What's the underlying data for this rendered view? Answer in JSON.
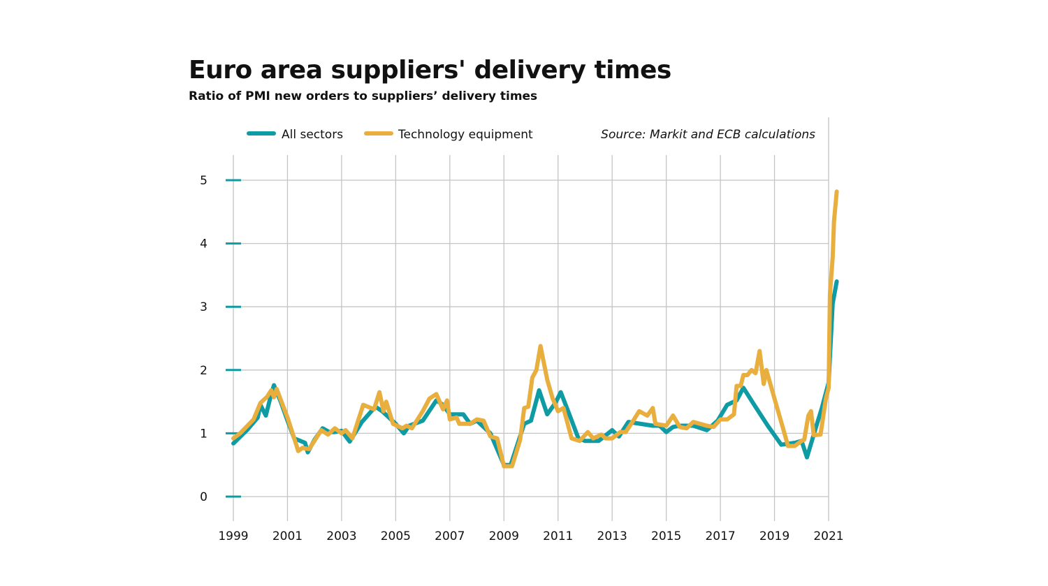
{
  "chart_title": "Euro area suppliers' delivery times",
  "chart_subtitle": "Ratio of PMI new orders to suppliers’ delivery times",
  "source": "Source: Markit and ECB calculations",
  "colors": {
    "all_sectors": "#0f9ba4",
    "technology_equipment": "#e8ae3e",
    "grid": "#c4c4c4",
    "y_tick_mark": "#0f9ba4"
  },
  "chart_data": {
    "type": "line",
    "title": "Euro area suppliers' delivery times",
    "subtitle": "Ratio of PMI new orders to suppliers’ delivery times",
    "xlabel": "",
    "ylabel": "",
    "x_unit": "year",
    "xlim": [
      1999,
      2021.4
    ],
    "ylim": [
      0,
      5
    ],
    "x_ticks": [
      1999,
      2001,
      2003,
      2005,
      2007,
      2009,
      2011,
      2013,
      2015,
      2017,
      2019,
      2021
    ],
    "y_ticks": [
      0,
      1,
      2,
      3,
      4,
      5
    ],
    "grid": true,
    "legend_position": "top",
    "series": [
      {
        "name": "All sectors",
        "color": "#0f9ba4",
        "points": [
          [
            1999.0,
            0.84
          ],
          [
            1999.5,
            1.05
          ],
          [
            1999.9,
            1.25
          ],
          [
            2000.0,
            1.45
          ],
          [
            2000.2,
            1.28
          ],
          [
            2000.4,
            1.62
          ],
          [
            2000.5,
            1.76
          ],
          [
            2000.75,
            1.5
          ],
          [
            2001.0,
            1.2
          ],
          [
            2001.25,
            0.92
          ],
          [
            2001.65,
            0.85
          ],
          [
            2001.75,
            0.7
          ],
          [
            2002.0,
            0.9
          ],
          [
            2002.3,
            1.08
          ],
          [
            2002.55,
            1.02
          ],
          [
            2002.75,
            1.02
          ],
          [
            2003.0,
            1.04
          ],
          [
            2003.3,
            0.87
          ],
          [
            2003.75,
            1.18
          ],
          [
            2004.25,
            1.42
          ],
          [
            2004.5,
            1.35
          ],
          [
            2004.75,
            1.25
          ],
          [
            2005.0,
            1.15
          ],
          [
            2005.3,
            1.0
          ],
          [
            2005.5,
            1.12
          ],
          [
            2006.0,
            1.2
          ],
          [
            2006.5,
            1.52
          ],
          [
            2006.75,
            1.45
          ],
          [
            2007.0,
            1.3
          ],
          [
            2007.25,
            1.3
          ],
          [
            2007.5,
            1.3
          ],
          [
            2007.75,
            1.15
          ],
          [
            2008.0,
            1.2
          ],
          [
            2008.5,
            1.0
          ],
          [
            2009.0,
            0.5
          ],
          [
            2009.25,
            0.5
          ],
          [
            2009.75,
            1.15
          ],
          [
            2010.0,
            1.2
          ],
          [
            2010.3,
            1.68
          ],
          [
            2010.6,
            1.3
          ],
          [
            2010.9,
            1.48
          ],
          [
            2011.1,
            1.65
          ],
          [
            2011.4,
            1.32
          ],
          [
            2011.75,
            0.92
          ],
          [
            2012.0,
            0.88
          ],
          [
            2012.5,
            0.88
          ],
          [
            2013.0,
            1.05
          ],
          [
            2013.25,
            0.95
          ],
          [
            2013.6,
            1.18
          ],
          [
            2014.5,
            1.12
          ],
          [
            2014.75,
            1.12
          ],
          [
            2015.0,
            1.02
          ],
          [
            2015.25,
            1.1
          ],
          [
            2015.5,
            1.12
          ],
          [
            2016.0,
            1.12
          ],
          [
            2016.5,
            1.05
          ],
          [
            2016.9,
            1.2
          ],
          [
            2017.25,
            1.45
          ],
          [
            2017.6,
            1.52
          ],
          [
            2017.85,
            1.72
          ],
          [
            2018.25,
            1.45
          ],
          [
            2018.75,
            1.12
          ],
          [
            2019.25,
            0.82
          ],
          [
            2019.75,
            0.85
          ],
          [
            2020.0,
            0.88
          ],
          [
            2020.2,
            0.62
          ],
          [
            2020.5,
            1.05
          ],
          [
            2020.75,
            1.4
          ],
          [
            2021.0,
            1.8
          ],
          [
            2021.15,
            3.05
          ],
          [
            2021.3,
            3.4
          ]
        ]
      },
      {
        "name": "Technology equipment",
        "color": "#e8ae3e",
        "points": [
          [
            1999.0,
            0.92
          ],
          [
            1999.25,
            1.0
          ],
          [
            1999.75,
            1.22
          ],
          [
            2000.0,
            1.48
          ],
          [
            2000.25,
            1.58
          ],
          [
            2000.4,
            1.68
          ],
          [
            2000.5,
            1.57
          ],
          [
            2000.6,
            1.7
          ],
          [
            2001.0,
            1.25
          ],
          [
            2001.25,
            0.92
          ],
          [
            2001.4,
            0.72
          ],
          [
            2001.55,
            0.77
          ],
          [
            2001.8,
            0.75
          ],
          [
            2002.25,
            1.05
          ],
          [
            2002.5,
            0.98
          ],
          [
            2002.75,
            1.08
          ],
          [
            2003.0,
            1.0
          ],
          [
            2003.15,
            1.05
          ],
          [
            2003.4,
            0.92
          ],
          [
            2003.8,
            1.45
          ],
          [
            2004.2,
            1.38
          ],
          [
            2004.4,
            1.65
          ],
          [
            2004.55,
            1.35
          ],
          [
            2004.65,
            1.5
          ],
          [
            2004.9,
            1.15
          ],
          [
            2005.25,
            1.08
          ],
          [
            2005.4,
            1.12
          ],
          [
            2005.6,
            1.08
          ],
          [
            2006.0,
            1.35
          ],
          [
            2006.25,
            1.55
          ],
          [
            2006.5,
            1.62
          ],
          [
            2006.75,
            1.38
          ],
          [
            2006.9,
            1.52
          ],
          [
            2007.0,
            1.22
          ],
          [
            2007.25,
            1.25
          ],
          [
            2007.35,
            1.15
          ],
          [
            2007.75,
            1.15
          ],
          [
            2008.0,
            1.22
          ],
          [
            2008.25,
            1.2
          ],
          [
            2008.5,
            0.95
          ],
          [
            2008.75,
            0.92
          ],
          [
            2009.0,
            0.48
          ],
          [
            2009.3,
            0.48
          ],
          [
            2009.6,
            0.9
          ],
          [
            2009.75,
            1.4
          ],
          [
            2009.9,
            1.42
          ],
          [
            2010.05,
            1.88
          ],
          [
            2010.2,
            2.0
          ],
          [
            2010.35,
            2.38
          ],
          [
            2010.6,
            1.85
          ],
          [
            2010.8,
            1.55
          ],
          [
            2011.0,
            1.35
          ],
          [
            2011.2,
            1.4
          ],
          [
            2011.5,
            0.92
          ],
          [
            2011.8,
            0.88
          ],
          [
            2012.1,
            1.02
          ],
          [
            2012.3,
            0.92
          ],
          [
            2012.6,
            0.98
          ],
          [
            2012.75,
            0.92
          ],
          [
            2013.0,
            0.92
          ],
          [
            2013.3,
            1.02
          ],
          [
            2013.5,
            1.02
          ],
          [
            2013.75,
            1.18
          ],
          [
            2014.0,
            1.35
          ],
          [
            2014.3,
            1.28
          ],
          [
            2014.5,
            1.4
          ],
          [
            2014.6,
            1.15
          ],
          [
            2015.0,
            1.12
          ],
          [
            2015.25,
            1.28
          ],
          [
            2015.5,
            1.1
          ],
          [
            2015.75,
            1.08
          ],
          [
            2016.0,
            1.18
          ],
          [
            2016.5,
            1.12
          ],
          [
            2016.75,
            1.1
          ],
          [
            2017.0,
            1.22
          ],
          [
            2017.25,
            1.22
          ],
          [
            2017.5,
            1.3
          ],
          [
            2017.6,
            1.75
          ],
          [
            2017.75,
            1.75
          ],
          [
            2017.85,
            1.92
          ],
          [
            2018.0,
            1.92
          ],
          [
            2018.15,
            2.0
          ],
          [
            2018.3,
            1.95
          ],
          [
            2018.45,
            2.3
          ],
          [
            2018.6,
            1.78
          ],
          [
            2018.7,
            2.0
          ],
          [
            2019.0,
            1.55
          ],
          [
            2019.3,
            1.1
          ],
          [
            2019.5,
            0.8
          ],
          [
            2019.75,
            0.8
          ],
          [
            2020.0,
            0.88
          ],
          [
            2020.1,
            0.9
          ],
          [
            2020.25,
            1.28
          ],
          [
            2020.35,
            1.35
          ],
          [
            2020.45,
            0.97
          ],
          [
            2020.7,
            0.98
          ],
          [
            2020.9,
            1.55
          ],
          [
            2021.0,
            1.72
          ],
          [
            2021.05,
            3.2
          ],
          [
            2021.15,
            3.78
          ],
          [
            2021.2,
            4.35
          ],
          [
            2021.3,
            4.82
          ]
        ]
      }
    ]
  }
}
